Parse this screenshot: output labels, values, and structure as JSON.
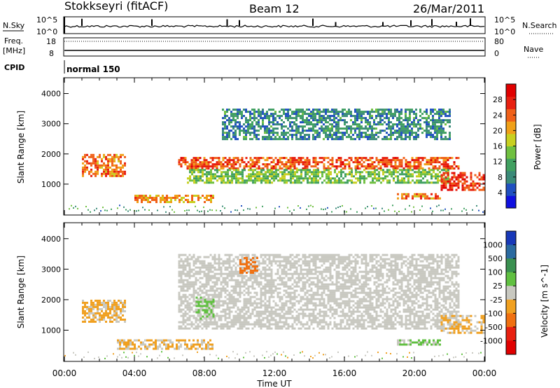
{
  "header": {
    "station": "Stokkseyri (fitACF)",
    "beam": "Beam 12",
    "date": "26/Mar/2011"
  },
  "strip_labels": {
    "nsky": "N.Sky",
    "nsearch": "N.Search",
    "freq_line1": "Freq.",
    "freq_line2": "[MHz]",
    "nave": "Nave",
    "cpid": "CPID",
    "cpid_value": "normal 150",
    "noise_tick_high": "10^5",
    "noise_tick_low": "10^0",
    "freq_tick_high": "18",
    "freq_tick_low": "8",
    "nave_tick_high": "80",
    "nave_tick_low": "0"
  },
  "colors": {
    "power_scale": [
      "#1010e0",
      "#2050c0",
      "#3a8a78",
      "#40a060",
      "#70c040",
      "#c8d020",
      "#f0a018",
      "#f06018",
      "#e82010",
      "#e00000"
    ],
    "velocity_scale": [
      "#1838b8",
      "#2a6aa0",
      "#3a9050",
      "#60c040",
      "#c8c8c0",
      "#f0a020",
      "#f07010",
      "#e82010",
      "#e00000"
    ],
    "power_band": "#e83010",
    "grey_scatter": "#c8c8c0"
  },
  "chart_data": [
    {
      "type": "heatmap",
      "name": "power",
      "x": {
        "label": "Time UT",
        "range": [
          "00:00",
          "24:00"
        ],
        "ticks": [
          "00:00",
          "04:00",
          "08:00",
          "12:00",
          "16:00",
          "20:00",
          "00:00"
        ]
      },
      "y": {
        "label": "Slant Range [km]",
        "range": [
          0,
          4500
        ],
        "ticks": [
          1000,
          2000,
          3000,
          4000
        ]
      },
      "colorbar": {
        "label": "Power [dB]",
        "ticks": [
          "4",
          "8",
          "12",
          "16",
          "20",
          "24",
          "28"
        ],
        "range": [
          0,
          32
        ]
      },
      "blobs": [
        {
          "t0": 1.0,
          "t1": 3.5,
          "r0": 1300,
          "r1": 2000,
          "level": 24
        },
        {
          "t0": 4.0,
          "t1": 8.5,
          "r0": 400,
          "r1": 650,
          "level": 22
        },
        {
          "t0": 6.5,
          "t1": 22.5,
          "r0": 1500,
          "r1": 1900,
          "level": 26
        },
        {
          "t0": 7.0,
          "t1": 22.0,
          "r0": 1050,
          "r1": 1500,
          "level": 14
        },
        {
          "t0": 9.0,
          "t1": 22.0,
          "r0": 2500,
          "r1": 3500,
          "level": 8
        },
        {
          "t0": 21.5,
          "t1": 24.0,
          "r0": 800,
          "r1": 1400,
          "level": 28
        },
        {
          "t0": 19.0,
          "t1": 21.5,
          "r0": 500,
          "r1": 700,
          "level": 24
        }
      ]
    },
    {
      "type": "heatmap",
      "name": "velocity",
      "x": {
        "label": "Time UT",
        "range": [
          "00:00",
          "24:00"
        ],
        "ticks": [
          "00:00",
          "04:00",
          "08:00",
          "12:00",
          "16:00",
          "20:00",
          "00:00"
        ]
      },
      "y": {
        "label": "Slant Range [km]",
        "range": [
          0,
          4500
        ],
        "ticks": [
          1000,
          2000,
          3000,
          4000
        ]
      },
      "colorbar": {
        "label": "Velocity [m s^-1]",
        "ticks": [
          "1000",
          "500",
          "100",
          "25",
          "-25",
          "-100",
          "-500",
          "-1000"
        ]
      },
      "blobs": [
        {
          "t0": 1.0,
          "t1": 3.5,
          "r0": 1300,
          "r1": 2000,
          "level": -100
        },
        {
          "t0": 3.0,
          "t1": 8.5,
          "r0": 400,
          "r1": 700,
          "level": -100
        },
        {
          "t0": 6.5,
          "t1": 22.5,
          "r0": 1050,
          "r1": 3500,
          "level": 0
        },
        {
          "t0": 7.5,
          "t1": 8.5,
          "r0": 1400,
          "r1": 2100,
          "level": 100
        },
        {
          "t0": 10.0,
          "t1": 11.0,
          "r0": 2900,
          "r1": 3400,
          "level": -500
        },
        {
          "t0": 19.0,
          "t1": 21.5,
          "r0": 500,
          "r1": 700,
          "level": 100
        },
        {
          "t0": 21.5,
          "t1": 24.0,
          "r0": 900,
          "r1": 1500,
          "level": -100
        }
      ]
    }
  ],
  "noise_data": {
    "spike_hours": [
      1.0,
      5.0,
      9.3,
      10.0,
      14.2,
      15.5,
      18.2,
      19.8,
      21.0,
      22.4,
      23.2
    ]
  }
}
